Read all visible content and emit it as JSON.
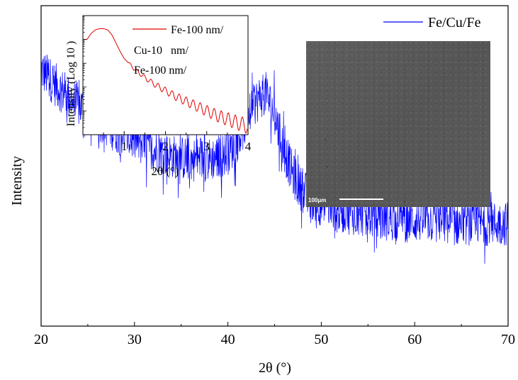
{
  "chart_data": [
    {
      "type": "line",
      "title": "",
      "xlabel": "2θ (°)",
      "ylabel": "Intensity",
      "xlim": [
        20,
        70
      ],
      "x_ticks": [
        "20",
        "30",
        "40",
        "50",
        "60",
        "70"
      ],
      "y_ticks_shown": false,
      "legend": {
        "position": "top-right",
        "entries": [
          "Fe/Cu/Fe"
        ]
      },
      "series": [
        {
          "name": "Fe/Cu/Fe",
          "color": "#0000ff",
          "description_points_x": [
            20,
            22,
            24,
            26,
            28,
            30,
            32,
            34,
            36,
            38,
            40,
            41,
            42,
            43,
            44,
            45,
            46,
            47,
            48,
            50,
            52,
            54,
            56,
            58,
            60,
            62,
            64,
            66,
            68,
            70
          ],
          "description_points_y": [
            0.8,
            0.74,
            0.69,
            0.65,
            0.61,
            0.58,
            0.55,
            0.53,
            0.52,
            0.52,
            0.54,
            0.58,
            0.64,
            0.7,
            0.73,
            0.66,
            0.55,
            0.47,
            0.42,
            0.38,
            0.36,
            0.35,
            0.34,
            0.33,
            0.33,
            0.33,
            0.32,
            0.32,
            0.32,
            0.32
          ]
        }
      ]
    },
    {
      "type": "line",
      "title": "",
      "xlabel": "2θ (°)",
      "ylabel": "Intensity  (Log 10 )",
      "xlim": [
        0,
        4
      ],
      "x_ticks": [
        "1",
        "2",
        "3",
        "4"
      ],
      "y_scale": "log",
      "legend": {
        "position": "top-right",
        "entries": [
          "Fe-100 nm/",
          "Cu-10   nm/",
          "Fe-100 nm/"
        ]
      },
      "series": [
        {
          "name": "Fe-100 nm/ Cu-10 nm/ Fe-100 nm/",
          "color": "#e00000",
          "x": [
            0.1,
            0.2,
            0.3,
            0.4,
            0.5,
            0.6,
            0.7,
            0.8,
            0.9,
            1.0,
            1.25,
            1.5,
            1.75,
            2.0,
            2.25,
            2.5,
            2.75,
            3.0,
            3.25,
            3.5,
            3.75,
            4.0
          ],
          "y": [
            0.8,
            0.85,
            0.88,
            0.89,
            0.89,
            0.88,
            0.84,
            0.77,
            0.7,
            0.64,
            0.55,
            0.48,
            0.42,
            0.37,
            0.32,
            0.28,
            0.24,
            0.2,
            0.16,
            0.13,
            0.1,
            0.07
          ]
        }
      ]
    }
  ],
  "inset_image": {
    "kind": "SEM micrograph",
    "scale_bar_label": "100μm"
  }
}
